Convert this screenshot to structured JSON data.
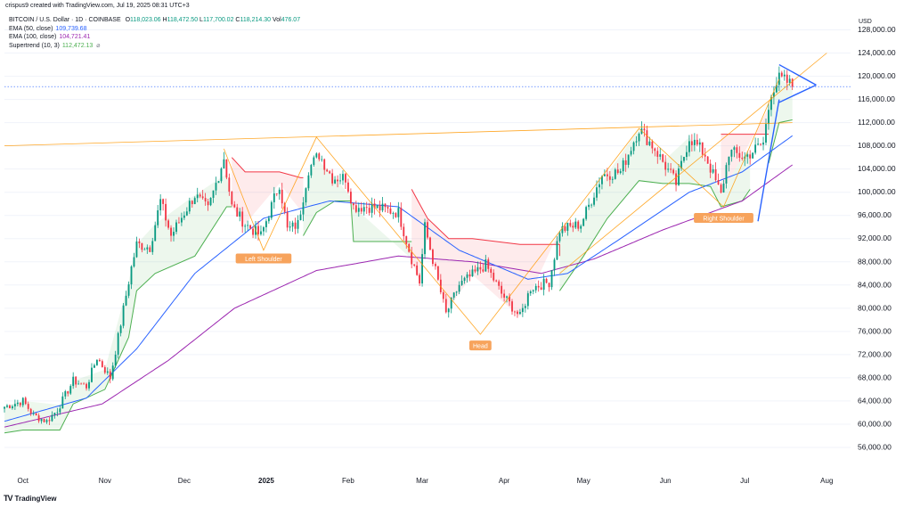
{
  "caption": "crispus9 created with TradingView.com, Jul 19, 2025 08:31 UTC+3",
  "symbol": "BITCOIN / U.S. Dollar · 1D · COINBASE",
  "ohlc": {
    "o_label": "O",
    "o": "118,023.06",
    "h_label": "H",
    "h": "118,472.50",
    "l_label": "L",
    "l": "117,700.02",
    "c_label": "C",
    "c": "118,214.30",
    "vol_label": "Vol",
    "vol": "476.07"
  },
  "indicators": [
    {
      "label": "EMA (50, close)",
      "value": "109,739.68",
      "color": "#2962ff"
    },
    {
      "label": "EMA (100, close)",
      "value": "104,721.41",
      "color": "#9c27b0"
    },
    {
      "label": "Supertrend (10, 3)",
      "value": "112,472.13",
      "color": "#4caf50"
    }
  ],
  "currency": "USD",
  "footer": "TradingView",
  "colors": {
    "up": "#089981",
    "down": "#f23645",
    "ema50": "#2962ff",
    "ema100": "#9c27b0",
    "supertrend_up": "#4caf50",
    "supertrend_down": "#f23645",
    "pattern": "#ff9800",
    "annotation_bg": "#f7a35c",
    "flag": "#2962ff"
  },
  "chart_data": {
    "type": "candlestick",
    "title": "BITCOIN / U.S. Dollar · 1D · COINBASE",
    "ylabel": "USD",
    "ylim": [
      52000,
      131000
    ],
    "y_ticks": [
      56000,
      60000,
      64000,
      68000,
      72000,
      76000,
      80000,
      84000,
      88000,
      92000,
      96000,
      100000,
      104000,
      108000,
      112000,
      116000,
      120000,
      124000,
      128000
    ],
    "y_tick_labels": [
      "56,000.00",
      "60,000.00",
      "64,000.00",
      "68,000.00",
      "72,000.00",
      "76,000.00",
      "80,000.00",
      "84,000.00",
      "88,000.00",
      "92,000.00",
      "96,000.00",
      "100,000.00",
      "104,000.00",
      "108,000.00",
      "112,000.00",
      "116,000.00",
      "120,000.00",
      "124,000.00",
      "128,000.00"
    ],
    "x_range": [
      "2024-09-24",
      "2025-08-10"
    ],
    "x_ticks": [
      {
        "date": "2024-10-01",
        "label": "Oct",
        "bold": false
      },
      {
        "date": "2024-11-01",
        "label": "Nov",
        "bold": false
      },
      {
        "date": "2024-12-01",
        "label": "Dec",
        "bold": false
      },
      {
        "date": "2025-01-01",
        "label": "2025",
        "bold": true
      },
      {
        "date": "2025-02-01",
        "label": "Feb",
        "bold": false
      },
      {
        "date": "2025-03-01",
        "label": "Mar",
        "bold": false
      },
      {
        "date": "2025-04-01",
        "label": "Apr",
        "bold": false
      },
      {
        "date": "2025-05-01",
        "label": "May",
        "bold": false
      },
      {
        "date": "2025-06-01",
        "label": "Jun",
        "bold": false
      },
      {
        "date": "2025-07-01",
        "label": "Jul",
        "bold": false
      },
      {
        "date": "2025-08-01",
        "label": "Aug",
        "bold": false
      }
    ],
    "price_anchors": [
      [
        "2024-09-24",
        63000
      ],
      [
        "2024-10-01",
        64000
      ],
      [
        "2024-10-05",
        61500
      ],
      [
        "2024-10-10",
        60500
      ],
      [
        "2024-10-14",
        62500
      ],
      [
        "2024-10-20",
        67500
      ],
      [
        "2024-10-25",
        66500
      ],
      [
        "2024-10-29",
        71500
      ],
      [
        "2024-11-03",
        68000
      ],
      [
        "2024-11-06",
        75000
      ],
      [
        "2024-11-11",
        87000
      ],
      [
        "2024-11-13",
        91000
      ],
      [
        "2024-11-18",
        90500
      ],
      [
        "2024-11-22",
        98500
      ],
      [
        "2024-11-26",
        92500
      ],
      [
        "2024-12-01",
        96500
      ],
      [
        "2024-12-05",
        99500
      ],
      [
        "2024-12-10",
        97000
      ],
      [
        "2024-12-16",
        106000
      ],
      [
        "2024-12-19",
        97500
      ],
      [
        "2024-12-24",
        94500
      ],
      [
        "2024-12-30",
        92500
      ],
      [
        "2025-01-06",
        101500
      ],
      [
        "2025-01-09",
        93500
      ],
      [
        "2025-01-13",
        94500
      ],
      [
        "2025-01-17",
        104000
      ],
      [
        "2025-01-21",
        106500
      ],
      [
        "2025-01-26",
        102500
      ],
      [
        "2025-01-31",
        102500
      ],
      [
        "2025-02-03",
        97500
      ],
      [
        "2025-02-10",
        97500
      ],
      [
        "2025-02-20",
        96500
      ],
      [
        "2025-02-25",
        88500
      ],
      [
        "2025-02-28",
        84500
      ],
      [
        "2025-03-02",
        94000
      ],
      [
        "2025-03-10",
        79000
      ],
      [
        "2025-03-15",
        84000
      ],
      [
        "2025-03-25",
        87500
      ],
      [
        "2025-03-31",
        82500
      ],
      [
        "2025-04-07",
        78500
      ],
      [
        "2025-04-11",
        83500
      ],
      [
        "2025-04-18",
        84500
      ],
      [
        "2025-04-22",
        93500
      ],
      [
        "2025-04-30",
        94500
      ],
      [
        "2025-05-08",
        103000
      ],
      [
        "2025-05-15",
        103500
      ],
      [
        "2025-05-22",
        111000
      ],
      [
        "2025-05-28",
        107500
      ],
      [
        "2025-06-05",
        101500
      ],
      [
        "2025-06-10",
        109500
      ],
      [
        "2025-06-16",
        106500
      ],
      [
        "2025-06-22",
        99500
      ],
      [
        "2025-06-25",
        107000
      ],
      [
        "2025-07-01",
        106000
      ],
      [
        "2025-07-08",
        108500
      ],
      [
        "2025-07-11",
        117500
      ],
      [
        "2025-07-14",
        119500
      ],
      [
        "2025-07-17",
        119000
      ],
      [
        "2025-07-19",
        118214
      ]
    ],
    "ema50_anchors": [
      [
        "2024-09-24",
        60500
      ],
      [
        "2024-10-25",
        64500
      ],
      [
        "2024-11-13",
        73000
      ],
      [
        "2024-12-05",
        86000
      ],
      [
        "2024-12-31",
        95500
      ],
      [
        "2025-01-25",
        98500
      ],
      [
        "2025-02-20",
        97500
      ],
      [
        "2025-03-15",
        90000
      ],
      [
        "2025-04-10",
        85000
      ],
      [
        "2025-04-25",
        86000
      ],
      [
        "2025-05-15",
        92000
      ],
      [
        "2025-06-10",
        100000
      ],
      [
        "2025-06-30",
        103500
      ],
      [
        "2025-07-19",
        109740
      ]
    ],
    "ema100_anchors": [
      [
        "2024-09-24",
        59500
      ],
      [
        "2024-10-31",
        63500
      ],
      [
        "2024-11-25",
        71000
      ],
      [
        "2024-12-20",
        80000
      ],
      [
        "2025-01-20",
        86500
      ],
      [
        "2025-02-20",
        89000
      ],
      [
        "2025-03-20",
        88000
      ],
      [
        "2025-04-15",
        86000
      ],
      [
        "2025-05-05",
        88500
      ],
      [
        "2025-05-31",
        93500
      ],
      [
        "2025-06-30",
        98500
      ],
      [
        "2025-07-19",
        104721
      ]
    ],
    "supertrend_segments": [
      {
        "trend": "up",
        "points": [
          [
            "2024-09-24",
            58500
          ],
          [
            "2024-10-01",
            59000
          ],
          [
            "2024-10-15",
            59000
          ],
          [
            "2024-10-20",
            63500
          ],
          [
            "2024-11-01",
            66000
          ],
          [
            "2024-11-10",
            75000
          ],
          [
            "2024-11-13",
            83000
          ],
          [
            "2024-11-20",
            86000
          ],
          [
            "2024-12-05",
            89000
          ],
          [
            "2024-12-17",
            97500
          ],
          [
            "2024-12-19",
            97500
          ]
        ]
      },
      {
        "trend": "down",
        "points": [
          [
            "2024-12-19",
            106000
          ],
          [
            "2024-12-24",
            103500
          ],
          [
            "2025-01-06",
            103500
          ],
          [
            "2025-01-14",
            102500
          ],
          [
            "2025-01-15",
            102500
          ]
        ]
      },
      {
        "trend": "up",
        "points": [
          [
            "2025-01-15",
            92500
          ],
          [
            "2025-01-20",
            96500
          ],
          [
            "2025-01-27",
            98500
          ],
          [
            "2025-02-02",
            98500
          ],
          [
            "2025-02-03",
            91500
          ],
          [
            "2025-02-25",
            91500
          ]
        ]
      },
      {
        "trend": "down",
        "points": [
          [
            "2025-02-25",
            100500
          ],
          [
            "2025-02-28",
            98000
          ],
          [
            "2025-03-03",
            95500
          ],
          [
            "2025-03-11",
            92000
          ],
          [
            "2025-03-20",
            92000
          ],
          [
            "2025-04-07",
            91000
          ],
          [
            "2025-04-22",
            91000
          ],
          [
            "2025-04-22",
            89000
          ]
        ]
      },
      {
        "trend": "up",
        "points": [
          [
            "2025-04-22",
            83000
          ],
          [
            "2025-05-01",
            89000
          ],
          [
            "2025-05-10",
            95500
          ],
          [
            "2025-05-22",
            102000
          ],
          [
            "2025-05-31",
            101500
          ],
          [
            "2025-06-10",
            101500
          ],
          [
            "2025-06-18",
            101000
          ],
          [
            "2025-06-22",
            97500
          ],
          [
            "2025-06-30",
            98500
          ],
          [
            "2025-07-03",
            100500
          ]
        ]
      },
      {
        "trend": "down",
        "points": [
          [
            "2025-06-22",
            110000
          ],
          [
            "2025-07-10",
            110000
          ],
          [
            "2025-07-10",
            110000
          ]
        ]
      },
      {
        "trend": "up",
        "points": [
          [
            "2025-07-10",
            105000
          ],
          [
            "2025-07-14",
            112000
          ],
          [
            "2025-07-19",
            112472
          ]
        ]
      }
    ],
    "current_price": 118214.3,
    "pattern_lines": [
      {
        "name": "neckline",
        "from": [
          "2024-09-24",
          108000
        ],
        "to": [
          "2025-07-19",
          112000
        ]
      },
      {
        "name": "ascending-support",
        "from": [
          "2025-04-22",
          86000
        ],
        "to": [
          "2025-08-01",
          124000
        ]
      },
      {
        "name": "hs-zigzag",
        "points": [
          [
            "2024-12-16",
            107500
          ],
          [
            "2024-12-31",
            90000
          ],
          [
            "2025-01-20",
            109500
          ],
          [
            "2025-03-23",
            75500
          ],
          [
            "2025-05-22",
            111000
          ],
          [
            "2025-06-23",
            97500
          ],
          [
            "2025-07-14",
            119500
          ]
        ]
      }
    ],
    "flag_lines": [
      {
        "from": [
          "2025-07-14",
          115500
        ],
        "to": [
          "2025-07-28",
          118500
        ]
      },
      {
        "from": [
          "2025-07-14",
          122000
        ],
        "to": [
          "2025-07-28",
          118500
        ]
      },
      {
        "from": [
          "2025-07-06",
          95000
        ],
        "to": [
          "2025-07-14",
          116000
        ]
      }
    ],
    "annotations": [
      {
        "text": "Left Shoulder",
        "date": "2024-12-31",
        "price": 88500
      },
      {
        "text": "Head",
        "date": "2025-03-23",
        "price": 73500
      },
      {
        "text": "Right Shoulder",
        "date": "2025-06-23",
        "price": 95500
      }
    ]
  }
}
